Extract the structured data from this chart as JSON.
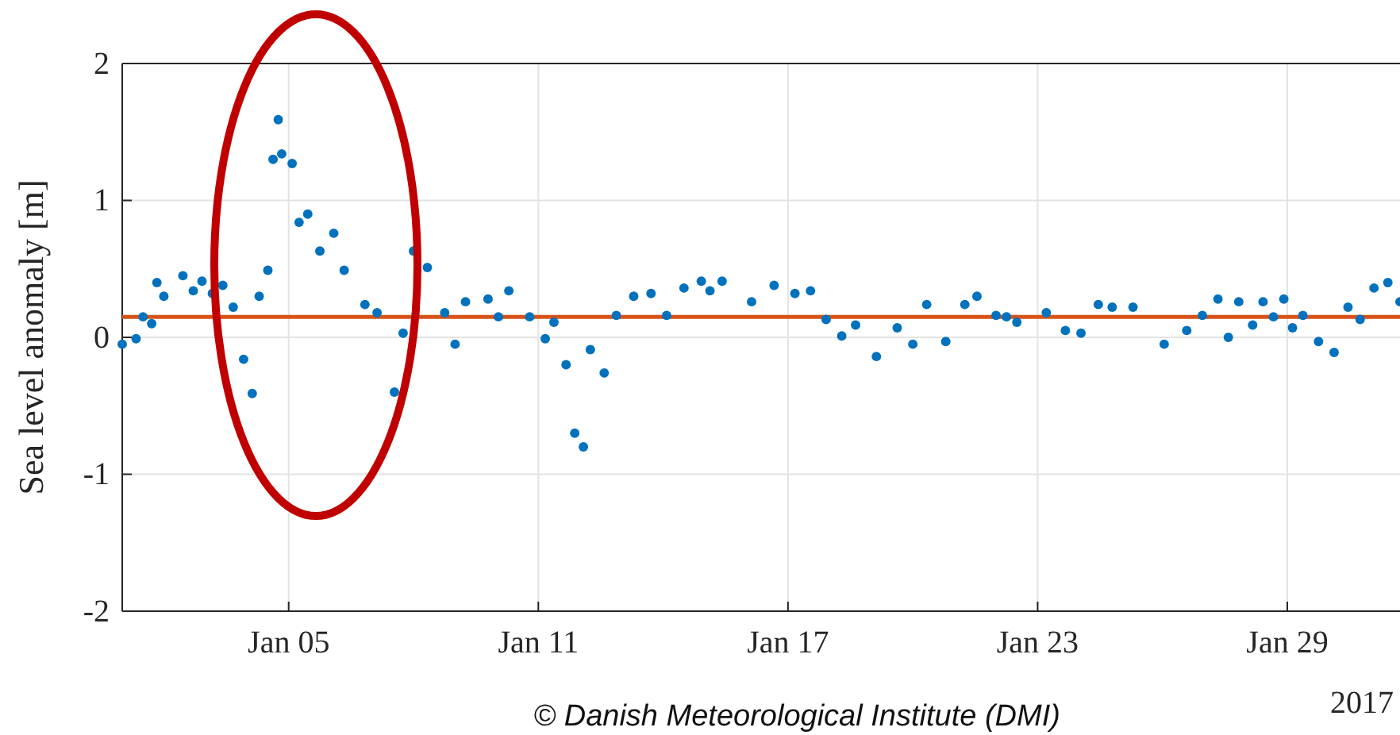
{
  "chart_data": {
    "type": "scatter",
    "ylabel": "Sea level anomaly [m]",
    "x": [
      "2017-01-01T00:00",
      "2017-01-01T08:00",
      "2017-01-01T12:00",
      "2017-01-01T17:00",
      "2017-01-01T20:00",
      "2017-01-02T00:00",
      "2017-01-02T11:00",
      "2017-01-02T17:00",
      "2017-01-02T22:00",
      "2017-01-03T04:00",
      "2017-01-03T10:00",
      "2017-01-03T16:00",
      "2017-01-03T22:00",
      "2017-01-04T03:00",
      "2017-01-04T07:00",
      "2017-01-04T12:00",
      "2017-01-04T15:00",
      "2017-01-04T18:00",
      "2017-01-04T20:00",
      "2017-01-05T02:00",
      "2017-01-05T06:00",
      "2017-01-05T11:00",
      "2017-01-05T18:00",
      "2017-01-06T02:00",
      "2017-01-06T08:00",
      "2017-01-06T20:00",
      "2017-01-07T03:00",
      "2017-01-07T13:00",
      "2017-01-07T18:00",
      "2017-01-08T00:00",
      "2017-01-08T08:00",
      "2017-01-08T18:00",
      "2017-01-09T00:00",
      "2017-01-09T06:00",
      "2017-01-09T19:00",
      "2017-01-10T01:00",
      "2017-01-10T07:00",
      "2017-01-10T19:00",
      "2017-01-11T04:00",
      "2017-01-11T09:00",
      "2017-01-11T16:00",
      "2017-01-11T21:00",
      "2017-01-12T02:00",
      "2017-01-12T06:00",
      "2017-01-12T14:00",
      "2017-01-12T21:00",
      "2017-01-13T07:00",
      "2017-01-13T17:00",
      "2017-01-14T02:00",
      "2017-01-14T12:00",
      "2017-01-14T22:00",
      "2017-01-15T03:00",
      "2017-01-15T10:00",
      "2017-01-16T03:00",
      "2017-01-16T16:00",
      "2017-01-17T04:00",
      "2017-01-17T13:00",
      "2017-01-17T22:00",
      "2017-01-18T07:00",
      "2017-01-18T15:00",
      "2017-01-19T03:00",
      "2017-01-19T15:00",
      "2017-01-20T00:00",
      "2017-01-20T08:00",
      "2017-01-20T19:00",
      "2017-01-21T06:00",
      "2017-01-21T13:00",
      "2017-01-22T00:00",
      "2017-01-22T06:00",
      "2017-01-22T12:00",
      "2017-01-23T05:00",
      "2017-01-23T16:00",
      "2017-01-24T01:00",
      "2017-01-24T11:00",
      "2017-01-24T19:00",
      "2017-01-25T07:00",
      "2017-01-26T01:00",
      "2017-01-26T14:00",
      "2017-01-26T23:00",
      "2017-01-27T08:00",
      "2017-01-27T14:00",
      "2017-01-27T20:00",
      "2017-01-28T04:00",
      "2017-01-28T10:00",
      "2017-01-28T16:00",
      "2017-01-28T22:00",
      "2017-01-29T03:00",
      "2017-01-29T09:00",
      "2017-01-29T18:00",
      "2017-01-30T03:00",
      "2017-01-30T11:00",
      "2017-01-30T18:00",
      "2017-01-31T02:00",
      "2017-01-31T10:00",
      "2017-01-31T17:00"
    ],
    "series": [
      {
        "color": "#0072bd",
        "values": [
          -0.05,
          -0.01,
          0.15,
          0.1,
          0.4,
          0.3,
          0.45,
          0.34,
          0.41,
          0.32,
          0.38,
          0.22,
          -0.16,
          -0.41,
          0.3,
          0.49,
          1.3,
          1.59,
          1.34,
          1.27,
          0.84,
          0.9,
          0.63,
          0.76,
          0.49,
          0.24,
          0.18,
          -0.4,
          0.03,
          0.63,
          0.51,
          0.18,
          -0.05,
          0.26,
          0.28,
          0.15,
          0.34,
          0.15,
          -0.01,
          0.11,
          -0.2,
          -0.7,
          -0.8,
          -0.09,
          -0.26,
          0.16,
          0.3,
          0.32,
          0.16,
          0.36,
          0.41,
          0.34,
          0.41,
          0.26,
          0.38,
          0.32,
          0.34,
          0.13,
          0.01,
          0.09,
          -0.14,
          0.07,
          -0.05,
          0.24,
          -0.03,
          0.24,
          0.3,
          0.16,
          0.15,
          0.11,
          0.18,
          0.05,
          0.03,
          0.24,
          0.22,
          0.22,
          -0.05,
          0.05,
          0.16,
          0.28,
          0.0,
          0.26,
          0.09,
          0.26,
          0.15,
          0.28,
          0.07,
          0.16,
          -0.03,
          -0.11,
          0.22,
          0.13,
          0.36,
          0.4,
          0.26
        ]
      }
    ],
    "marker": "circle",
    "xlim": [
      "2017-01-01T00:00",
      "2017-01-31T17:00"
    ],
    "xticks": [
      {
        "value": "2017-01-05",
        "label": "Jan 05"
      },
      {
        "value": "2017-01-11",
        "label": "Jan 11"
      },
      {
        "value": "2017-01-17",
        "label": "Jan 17"
      },
      {
        "value": "2017-01-23",
        "label": "Jan 23"
      },
      {
        "value": "2017-01-29",
        "label": "Jan 29"
      }
    ],
    "ylim": [
      -2,
      2
    ],
    "yticks": [
      -2,
      -1,
      0,
      1,
      2
    ],
    "grid": true,
    "ref_lines": [
      {
        "axis": "y",
        "value": 0.15,
        "color": "#d95319"
      }
    ],
    "annotations": [
      "2017",
      "© Danish Meteorological Institute (DMI)"
    ]
  }
}
